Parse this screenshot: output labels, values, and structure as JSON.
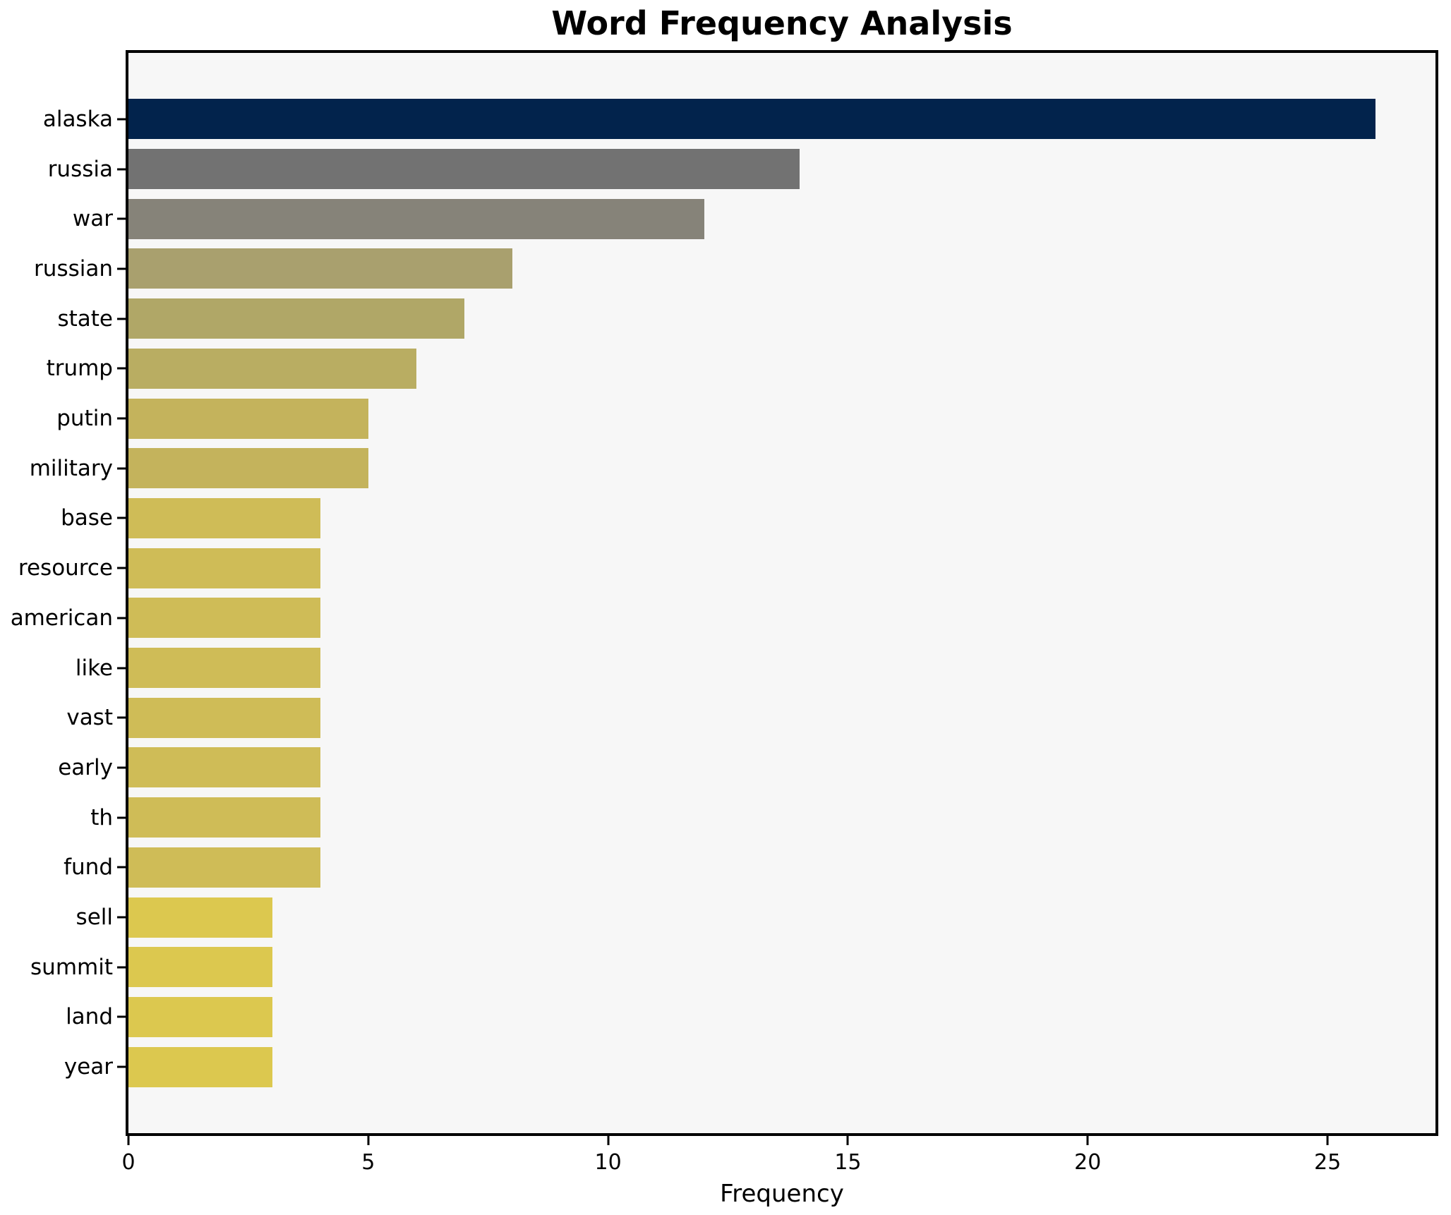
{
  "chart_data": {
    "type": "bar",
    "orientation": "horizontal",
    "title": "Word Frequency Analysis",
    "xlabel": "Frequency",
    "ylabel": "",
    "categories": [
      "alaska",
      "russia",
      "war",
      "russian",
      "state",
      "trump",
      "putin",
      "military",
      "base",
      "resource",
      "american",
      "like",
      "vast",
      "early",
      "th",
      "fund",
      "sell",
      "summit",
      "land",
      "year"
    ],
    "values": [
      26,
      14,
      12,
      8,
      7,
      6,
      5,
      5,
      4,
      4,
      4,
      4,
      4,
      4,
      4,
      4,
      3,
      3,
      3,
      3
    ],
    "bar_colors": [
      "#02234c",
      "#727272",
      "#868379",
      "#a9a06e",
      "#b0a767",
      "#b9ad62",
      "#c4b35c",
      "#c4b35c",
      "#cfbc57",
      "#cfbc57",
      "#cfbc57",
      "#cfbc57",
      "#cfbc57",
      "#cfbc57",
      "#cfbc57",
      "#cfbc57",
      "#dcc84f",
      "#dcc84f",
      "#dcc84f",
      "#dcc84f"
    ],
    "xticks": [
      0,
      5,
      10,
      15,
      20,
      25
    ],
    "xlim": [
      0,
      27.25
    ],
    "grid": false,
    "legend": "none",
    "plot_background": "#f7f7f7",
    "figure_background": "#ffffff",
    "spine_color": "#000000",
    "text_color": "#000000"
  }
}
